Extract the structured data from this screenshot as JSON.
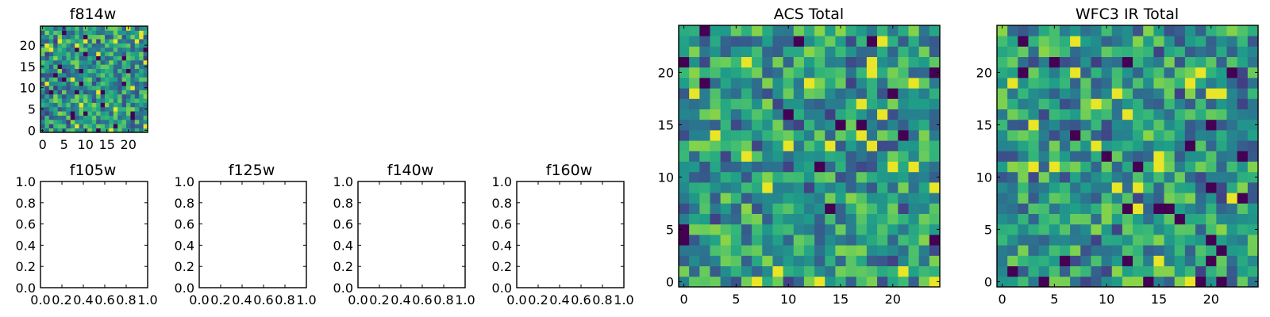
{
  "figure": {
    "background": "#ffffff"
  },
  "chart_data": [
    {
      "id": "f814w",
      "type": "heatmap",
      "title": "f814w",
      "grid_size": 25,
      "seed": 814,
      "xticks": [
        "0",
        "5",
        "10",
        "15",
        "20"
      ],
      "yticks": [
        "0",
        "5",
        "10",
        "15",
        "20"
      ],
      "xlim": [
        -0.5,
        24.5
      ],
      "ylim": [
        -0.5,
        24.5
      ],
      "colormap": "viridis"
    },
    {
      "id": "f105w",
      "type": "empty",
      "title": "f105w",
      "xticks": [
        "0.0",
        "0.2",
        "0.4",
        "0.6",
        "0.8",
        "1.0"
      ],
      "yticks": [
        "0.0",
        "0.2",
        "0.4",
        "0.6",
        "0.8",
        "1.0"
      ],
      "xlim": [
        0,
        1
      ],
      "ylim": [
        0,
        1
      ]
    },
    {
      "id": "f125w",
      "type": "empty",
      "title": "f125w",
      "xticks": [
        "0.0",
        "0.2",
        "0.4",
        "0.6",
        "0.8",
        "1.0"
      ],
      "yticks": [
        "0.0",
        "0.2",
        "0.4",
        "0.6",
        "0.8",
        "1.0"
      ],
      "xlim": [
        0,
        1
      ],
      "ylim": [
        0,
        1
      ]
    },
    {
      "id": "f140w",
      "type": "empty",
      "title": "f140w",
      "xticks": [
        "0.0",
        "0.2",
        "0.4",
        "0.6",
        "0.8",
        "1.0"
      ],
      "yticks": [
        "0.0",
        "0.2",
        "0.4",
        "0.6",
        "0.8",
        "1.0"
      ],
      "xlim": [
        0,
        1
      ],
      "ylim": [
        0,
        1
      ]
    },
    {
      "id": "f160w",
      "type": "empty",
      "title": "f160w",
      "xticks": [
        "0.0",
        "0.2",
        "0.4",
        "0.6",
        "0.8",
        "1.0"
      ],
      "yticks": [
        "0.0",
        "0.2",
        "0.4",
        "0.6",
        "0.8",
        "1.0"
      ],
      "xlim": [
        0,
        1
      ],
      "ylim": [
        0,
        1
      ]
    },
    {
      "id": "acs-total",
      "type": "heatmap",
      "title": "ACS Total",
      "grid_size": 25,
      "seed": 2718,
      "xticks": [
        "0",
        "5",
        "10",
        "15",
        "20"
      ],
      "yticks": [
        "0",
        "5",
        "10",
        "15",
        "20"
      ],
      "xlim": [
        -0.5,
        24.5
      ],
      "ylim": [
        -0.5,
        24.5
      ],
      "colormap": "viridis"
    },
    {
      "id": "wfc3-ir-total",
      "type": "heatmap",
      "title": "WFC3 IR Total",
      "grid_size": 25,
      "seed": 3141,
      "xticks": [
        "0",
        "5",
        "10",
        "15",
        "20"
      ],
      "yticks": [
        "0",
        "5",
        "10",
        "15",
        "20"
      ],
      "xlim": [
        -0.5,
        24.5
      ],
      "ylim": [
        -0.5,
        24.5
      ],
      "colormap": "viridis"
    }
  ]
}
